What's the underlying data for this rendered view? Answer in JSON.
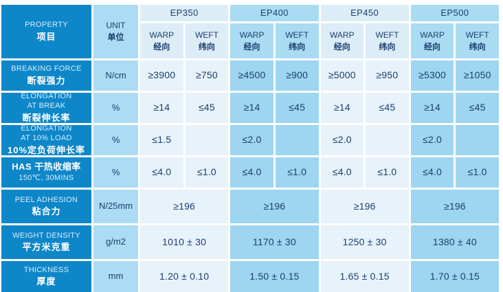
{
  "colors": {
    "deep_blue": "#0e87c9",
    "unit_column": "#abdcf3",
    "light_group_header": "#dcedf8",
    "light_group_cell": "#e7f2fb",
    "mid_group_header": "#a9dbf3",
    "mid_group_cell": "#9ed5f0",
    "value_text": "#1c3e6d",
    "label_text": "#ffffff"
  },
  "header": {
    "property_en": "PROPERTY",
    "property_zh": "项目",
    "unit_en": "UNIT",
    "unit_zh": "单位",
    "warp_en": "WARP",
    "warp_zh": "经向",
    "weft_en": "WEFT",
    "weft_zh": "纬向",
    "groups": [
      "EP350",
      "EP400",
      "EP450",
      "EP500"
    ]
  },
  "rows": [
    {
      "line1": "BREAKING FORCE",
      "line2": "断裂强力",
      "unit": "N/cm",
      "cells": [
        "≥3900",
        "≥750",
        "≥4500",
        "≥900",
        "≥5000",
        "≥950",
        "≥5300",
        "≥1050"
      ]
    },
    {
      "line1": "ELONGATION\nAT BREAK",
      "line2": "断裂伸长率",
      "unit": "%",
      "cells": [
        "≥14",
        "≤45",
        "≥14",
        "≤45",
        "≥14",
        "≤45",
        "≥14",
        "≤45"
      ]
    },
    {
      "line1": "ELONGATION\nAT 10% LOAD",
      "line2": "10%定负荷伸长率",
      "unit": "%",
      "cells": [
        "≤1.5",
        "",
        "≤2.0",
        "",
        "≤2.0",
        "",
        "≤2.0",
        ""
      ]
    },
    {
      "line1": "HAS  干热收缩率",
      "line2": "150℃, 30MINS",
      "unit": "%",
      "cells": [
        "≤4.0",
        "≤1.0",
        "≤4.0",
        "≤1.0",
        "≤4.0",
        "≤1.0",
        "≤4.0",
        "≤1.0"
      ]
    },
    {
      "line1": "PEEL ADHESION",
      "line2": "粘合力",
      "unit": "N/25mm",
      "merged": true,
      "cells": [
        "≥196",
        "≥196",
        "≥196",
        "≥196"
      ]
    },
    {
      "line1": "WEIGHT DENSITY",
      "line2": "平方米克重",
      "unit": "g/m2",
      "merged": true,
      "cells": [
        "1010 ± 30",
        "1170 ± 30",
        "1250 ± 30",
        "1380 ± 40"
      ]
    },
    {
      "line1": "THICKNESS",
      "line2": "厚度",
      "unit": "mm",
      "merged": true,
      "cells": [
        "1.20 ± 0.10",
        "1.50 ± 0.15",
        "1.65 ± 0.15",
        "1.70 ± 0.15"
      ]
    }
  ]
}
